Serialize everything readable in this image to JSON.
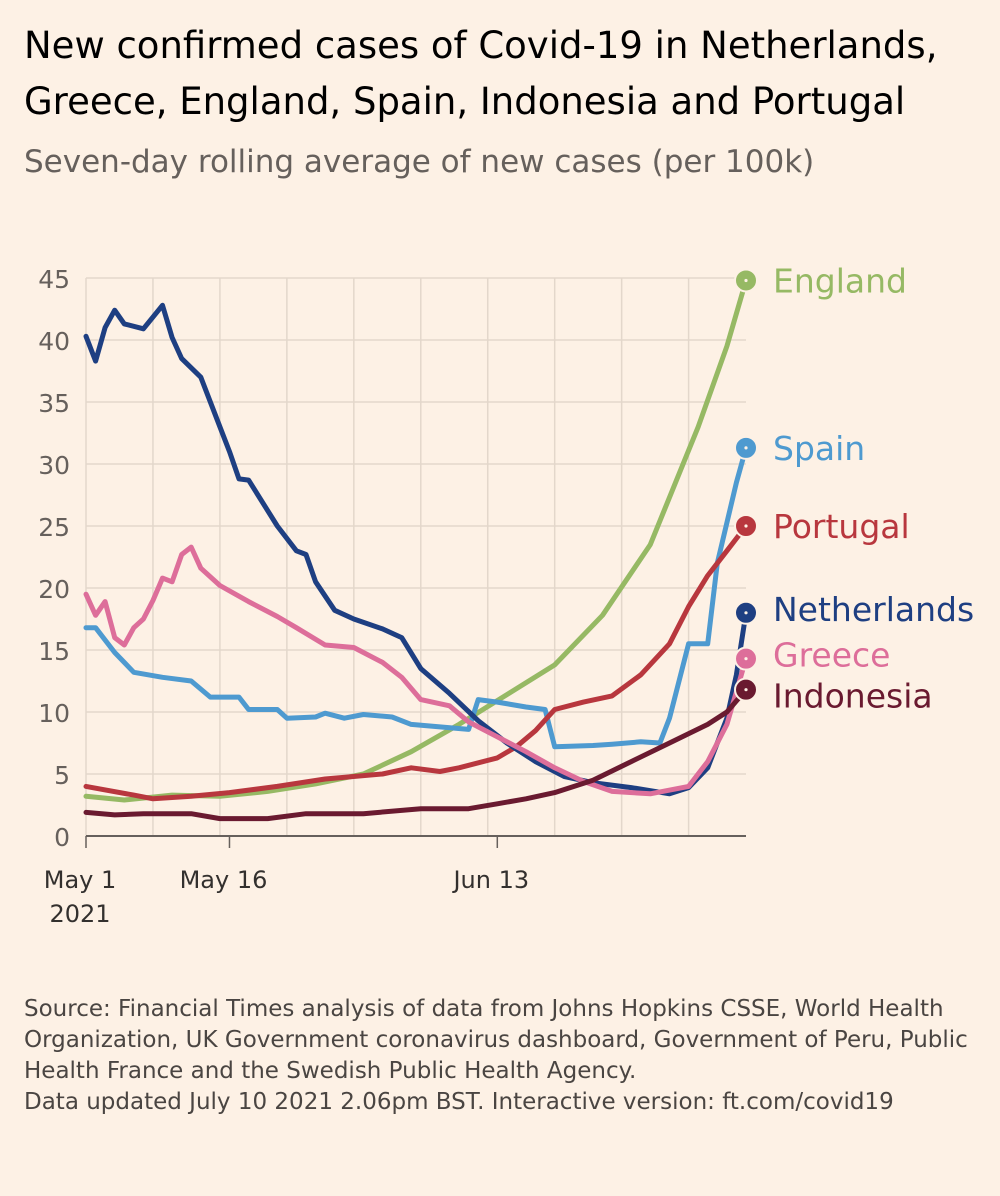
{
  "title": "New confirmed cases of Covid-19 in Netherlands, Greece, England, Spain, Indonesia and Portugal",
  "subtitle": "Seven-day rolling average of new cases (per 100k)",
  "footer": {
    "source": "Source: Financial Times analysis of data from Johns Hopkins CSSE, World Health Organization, UK Government coronavirus dashboard, Government of Peru, Public Health France and the Swedish Public Health Agency.",
    "updated": "Data updated July 10 2021 2.06pm BST. Interactive version: ft.com/covid19"
  },
  "chart_data": {
    "type": "line",
    "title": "New confirmed cases of Covid-19 in Netherlands, Greece, England, Spain, Indonesia and Portugal",
    "subtitle": "Seven-day rolling average of new cases (per 100k)",
    "xlabel": "",
    "ylabel": "",
    "ylim": [
      0,
      45
    ],
    "yticks": [
      0,
      5,
      10,
      15,
      20,
      25,
      30,
      35,
      40,
      45
    ],
    "xlim": [
      "2021-05-01",
      "2021-07-09"
    ],
    "xticks": [
      {
        "date": "2021-05-01",
        "label": "May 1",
        "sublabel": "2021"
      },
      {
        "date": "2021-05-16",
        "label": "May 16",
        "sublabel": ""
      },
      {
        "date": "2021-06-13",
        "label": "Jun 13",
        "sublabel": ""
      }
    ],
    "grid": true,
    "legend": "end-of-line labels",
    "series": [
      {
        "name": "England",
        "color": "#96b964",
        "points": [
          [
            "2021-05-01",
            3.2
          ],
          [
            "2021-05-05",
            2.9
          ],
          [
            "2021-05-10",
            3.3
          ],
          [
            "2021-05-15",
            3.2
          ],
          [
            "2021-05-20",
            3.6
          ],
          [
            "2021-05-25",
            4.2
          ],
          [
            "2021-05-30",
            5.0
          ],
          [
            "2021-06-04",
            6.8
          ],
          [
            "2021-06-09",
            9.0
          ],
          [
            "2021-06-14",
            11.4
          ],
          [
            "2021-06-19",
            13.8
          ],
          [
            "2021-06-24",
            17.8
          ],
          [
            "2021-06-29",
            23.5
          ],
          [
            "2021-07-04",
            33.0
          ],
          [
            "2021-07-07",
            39.5
          ],
          [
            "2021-07-09",
            44.8
          ]
        ]
      },
      {
        "name": "Spain",
        "color": "#4e9ad0",
        "points": [
          [
            "2021-05-01",
            16.8
          ],
          [
            "2021-05-02",
            16.8
          ],
          [
            "2021-05-04",
            14.8
          ],
          [
            "2021-05-06",
            13.2
          ],
          [
            "2021-05-09",
            12.8
          ],
          [
            "2021-05-12",
            12.5
          ],
          [
            "2021-05-14",
            11.2
          ],
          [
            "2021-05-17",
            11.2
          ],
          [
            "2021-05-18",
            10.2
          ],
          [
            "2021-05-21",
            10.2
          ],
          [
            "2021-05-22",
            9.5
          ],
          [
            "2021-05-25",
            9.6
          ],
          [
            "2021-05-26",
            9.9
          ],
          [
            "2021-05-28",
            9.5
          ],
          [
            "2021-05-30",
            9.8
          ],
          [
            "2021-06-02",
            9.6
          ],
          [
            "2021-06-04",
            9.0
          ],
          [
            "2021-06-10",
            8.6
          ],
          [
            "2021-06-11",
            11.0
          ],
          [
            "2021-06-13",
            10.8
          ],
          [
            "2021-06-16",
            10.4
          ],
          [
            "2021-06-18",
            10.2
          ],
          [
            "2021-06-19",
            7.2
          ],
          [
            "2021-06-23",
            7.3
          ],
          [
            "2021-06-25",
            7.4
          ],
          [
            "2021-06-28",
            7.6
          ],
          [
            "2021-06-30",
            7.5
          ],
          [
            "2021-07-01",
            9.5
          ],
          [
            "2021-07-03",
            15.5
          ],
          [
            "2021-07-05",
            15.5
          ],
          [
            "2021-07-06",
            22.0
          ],
          [
            "2021-07-08",
            28.5
          ],
          [
            "2021-07-09",
            31.3
          ]
        ]
      },
      {
        "name": "Portugal",
        "color": "#b8373e",
        "points": [
          [
            "2021-05-01",
            4.0
          ],
          [
            "2021-05-06",
            3.3
          ],
          [
            "2021-05-08",
            3.0
          ],
          [
            "2021-05-12",
            3.2
          ],
          [
            "2021-05-16",
            3.5
          ],
          [
            "2021-05-21",
            4.0
          ],
          [
            "2021-05-26",
            4.6
          ],
          [
            "2021-06-01",
            5.0
          ],
          [
            "2021-06-04",
            5.5
          ],
          [
            "2021-06-07",
            5.2
          ],
          [
            "2021-06-09",
            5.5
          ],
          [
            "2021-06-13",
            6.3
          ],
          [
            "2021-06-15",
            7.2
          ],
          [
            "2021-06-17",
            8.5
          ],
          [
            "2021-06-19",
            10.2
          ],
          [
            "2021-06-22",
            10.8
          ],
          [
            "2021-06-25",
            11.3
          ],
          [
            "2021-06-28",
            13.0
          ],
          [
            "2021-07-01",
            15.5
          ],
          [
            "2021-07-03",
            18.5
          ],
          [
            "2021-07-05",
            21.0
          ],
          [
            "2021-07-07",
            23.0
          ],
          [
            "2021-07-09",
            25.0
          ]
        ]
      },
      {
        "name": "Netherlands",
        "color": "#1e3f82",
        "points": [
          [
            "2021-05-01",
            40.3
          ],
          [
            "2021-05-02",
            38.3
          ],
          [
            "2021-05-03",
            41.0
          ],
          [
            "2021-05-04",
            42.4
          ],
          [
            "2021-05-05",
            41.3
          ],
          [
            "2021-05-07",
            40.9
          ],
          [
            "2021-05-09",
            42.8
          ],
          [
            "2021-05-10",
            40.2
          ],
          [
            "2021-05-11",
            38.5
          ],
          [
            "2021-05-13",
            37.0
          ],
          [
            "2021-05-15",
            33.0
          ],
          [
            "2021-05-16",
            31.0
          ],
          [
            "2021-05-17",
            28.8
          ],
          [
            "2021-05-18",
            28.7
          ],
          [
            "2021-05-21",
            25.0
          ],
          [
            "2021-05-23",
            23.0
          ],
          [
            "2021-05-24",
            22.7
          ],
          [
            "2021-05-25",
            20.5
          ],
          [
            "2021-05-27",
            18.2
          ],
          [
            "2021-05-29",
            17.5
          ],
          [
            "2021-06-01",
            16.7
          ],
          [
            "2021-06-03",
            16.0
          ],
          [
            "2021-06-05",
            13.5
          ],
          [
            "2021-06-08",
            11.5
          ],
          [
            "2021-06-11",
            9.3
          ],
          [
            "2021-06-14",
            7.5
          ],
          [
            "2021-06-17",
            6.0
          ],
          [
            "2021-06-20",
            4.8
          ],
          [
            "2021-06-23",
            4.3
          ],
          [
            "2021-06-27",
            3.9
          ],
          [
            "2021-07-01",
            3.4
          ],
          [
            "2021-07-03",
            3.9
          ],
          [
            "2021-07-05",
            5.5
          ],
          [
            "2021-07-07",
            9.5
          ],
          [
            "2021-07-08",
            13.0
          ],
          [
            "2021-07-09",
            18.0
          ]
        ]
      },
      {
        "name": "Greece",
        "color": "#dd6e9a",
        "points": [
          [
            "2021-05-01",
            19.5
          ],
          [
            "2021-05-02",
            17.8
          ],
          [
            "2021-05-03",
            18.9
          ],
          [
            "2021-05-04",
            16.0
          ],
          [
            "2021-05-05",
            15.4
          ],
          [
            "2021-05-06",
            16.8
          ],
          [
            "2021-05-07",
            17.5
          ],
          [
            "2021-05-08",
            19.0
          ],
          [
            "2021-05-09",
            20.8
          ],
          [
            "2021-05-10",
            20.5
          ],
          [
            "2021-05-11",
            22.7
          ],
          [
            "2021-05-12",
            23.3
          ],
          [
            "2021-05-13",
            21.6
          ],
          [
            "2021-05-15",
            20.2
          ],
          [
            "2021-05-18",
            18.9
          ],
          [
            "2021-05-21",
            17.7
          ],
          [
            "2021-05-23",
            16.8
          ],
          [
            "2021-05-26",
            15.4
          ],
          [
            "2021-05-29",
            15.2
          ],
          [
            "2021-06-01",
            14.0
          ],
          [
            "2021-06-03",
            12.8
          ],
          [
            "2021-06-05",
            11.0
          ],
          [
            "2021-06-08",
            10.5
          ],
          [
            "2021-06-10",
            9.2
          ],
          [
            "2021-06-13",
            8.0
          ],
          [
            "2021-06-16",
            6.8
          ],
          [
            "2021-06-19",
            5.5
          ],
          [
            "2021-06-22",
            4.4
          ],
          [
            "2021-06-25",
            3.6
          ],
          [
            "2021-06-29",
            3.4
          ],
          [
            "2021-07-03",
            4.0
          ],
          [
            "2021-07-05",
            6.0
          ],
          [
            "2021-07-07",
            9.0
          ],
          [
            "2021-07-09",
            14.3
          ]
        ]
      },
      {
        "name": "Indonesia",
        "color": "#6a1a30",
        "points": [
          [
            "2021-05-01",
            1.9
          ],
          [
            "2021-05-04",
            1.7
          ],
          [
            "2021-05-07",
            1.8
          ],
          [
            "2021-05-12",
            1.8
          ],
          [
            "2021-05-15",
            1.4
          ],
          [
            "2021-05-20",
            1.4
          ],
          [
            "2021-05-24",
            1.8
          ],
          [
            "2021-05-30",
            1.8
          ],
          [
            "2021-06-05",
            2.2
          ],
          [
            "2021-06-10",
            2.2
          ],
          [
            "2021-06-13",
            2.6
          ],
          [
            "2021-06-16",
            3.0
          ],
          [
            "2021-06-19",
            3.5
          ],
          [
            "2021-06-23",
            4.5
          ],
          [
            "2021-06-27",
            6.0
          ],
          [
            "2021-07-01",
            7.5
          ],
          [
            "2021-07-05",
            9.0
          ],
          [
            "2021-07-07",
            10.0
          ],
          [
            "2021-07-09",
            11.8
          ]
        ]
      }
    ]
  }
}
